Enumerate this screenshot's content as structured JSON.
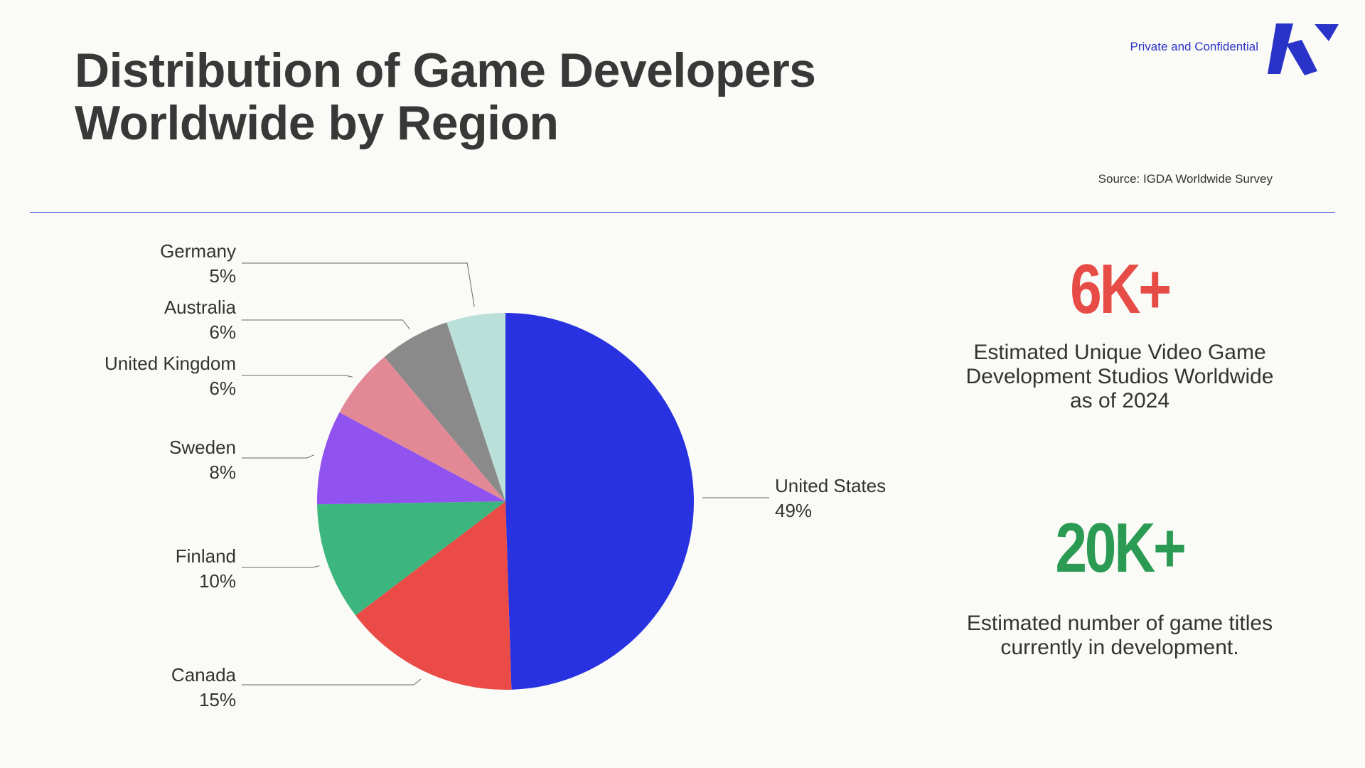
{
  "header": {
    "title_line1": "Distribution of Game Developers",
    "title_line2": "Worldwide by Region",
    "confidential": "Private and Confidential",
    "source": "Source: IGDA Worldwide Survey"
  },
  "colors": {
    "accent": "#2a33c8",
    "stat1": "#e64b45",
    "stat2": "#2b9a53"
  },
  "stats": [
    {
      "value": "6K+",
      "desc_lines": [
        "Estimated Unique Video Game",
        "Development Studios Worldwide",
        "as of 2024"
      ]
    },
    {
      "value": "20K+",
      "desc_lines": [
        "Estimated number of game titles",
        "currently in development."
      ]
    }
  ],
  "chart_data": {
    "type": "pie",
    "title": "Distribution of Game Developers Worldwide by Region",
    "slices": [
      {
        "label": "United States",
        "value": 49,
        "display": "49%",
        "color": "#2832e0"
      },
      {
        "label": "Canada",
        "value": 15,
        "display": "15%",
        "color": "#ea4b46"
      },
      {
        "label": "Finland",
        "value": 10,
        "display": "10%",
        "color": "#3cb67e"
      },
      {
        "label": "Sweden",
        "value": 8,
        "display": "8%",
        "color": "#9153f0"
      },
      {
        "label": "United Kingdom",
        "value": 6,
        "display": "6%",
        "color": "#e28995"
      },
      {
        "label": "Australia",
        "value": 6,
        "display": "6%",
        "color": "#8a8a8a"
      },
      {
        "label": "Germany",
        "value": 5,
        "display": "5%",
        "color": "#bae0d9"
      }
    ]
  }
}
